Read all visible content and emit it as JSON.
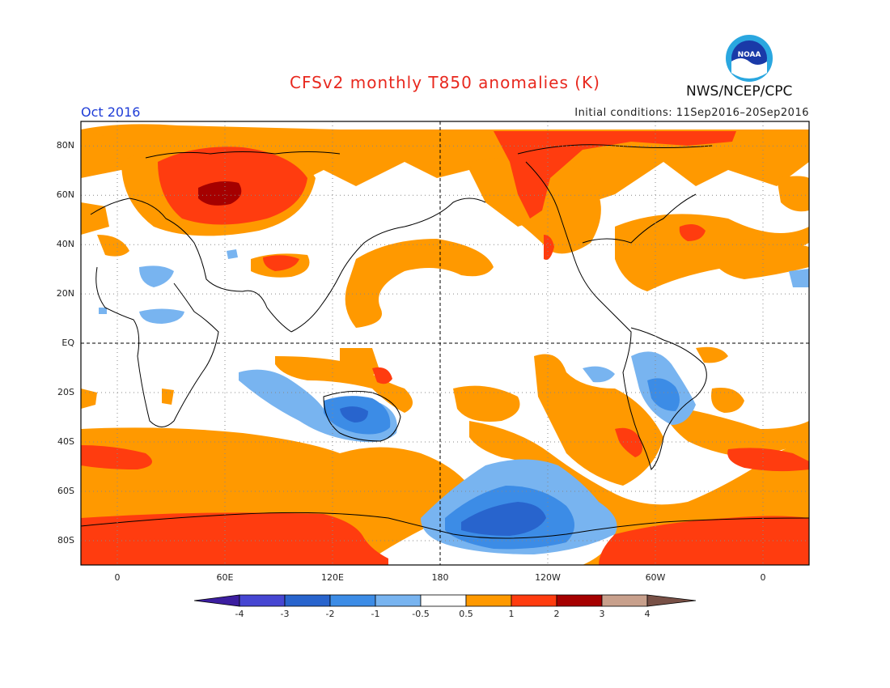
{
  "title": "CFSv2 monthly T850 anomalies (K)",
  "period": "Oct 2016",
  "initial_conditions": "Initial conditions: 11Sep2016–20Sep2016",
  "agency": "NWS/NCEP/CPC",
  "logo_text": "NOAA",
  "lat_labels": [
    "80N",
    "60N",
    "40N",
    "20N",
    "EQ",
    "20S",
    "40S",
    "60S",
    "80S"
  ],
  "lon_labels": [
    "0",
    "60E",
    "120E",
    "180",
    "120W",
    "60W",
    "0"
  ],
  "colorbar": {
    "labels": [
      "-4",
      "-3",
      "-2",
      "-1",
      "-0.5",
      "0.5",
      "1",
      "2",
      "3",
      "4"
    ],
    "colors": [
      "#3c1ea0",
      "#4646d2",
      "#2864cd",
      "#3c8ce6",
      "#78b4f0",
      "#ffffff",
      "#ff9900",
      "#ff3c0f",
      "#a50000",
      "#c8a08c",
      "#785046"
    ]
  },
  "colors": {
    "warm1": "#ff9900",
    "warm2": "#ff3c0f",
    "warm3": "#a50000",
    "cool1": "#78b4f0",
    "cool2": "#3c8ce6",
    "cool3": "#2864cd"
  }
}
